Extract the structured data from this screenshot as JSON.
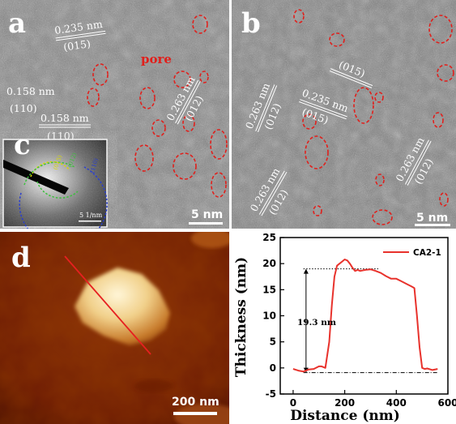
{
  "panel_a": {
    "letter": "a",
    "labels": [
      {
        "distance": "0.235 nm",
        "plane": "(015)"
      },
      {
        "distance": "0.158 nm",
        "plane": "(110)"
      },
      {
        "distance": "0.158 nm",
        "plane": "(110)"
      },
      {
        "distance": "0.263 nm",
        "plane": "(012)"
      }
    ],
    "pore_label": "pore",
    "scale_bar": "5 nm",
    "inset": {
      "letter": "c",
      "scale_bar": "5 1/nm",
      "ring_labels": [
        "(015)",
        "(012)",
        "(110)"
      ]
    }
  },
  "panel_b": {
    "letter": "b",
    "labels": [
      {
        "distance": "0.263 nm",
        "plane": "(012)"
      },
      {
        "distance": "0.235 nm",
        "plane": "(015)"
      },
      {
        "distance": "0.263 nm",
        "plane": "(012)"
      },
      {
        "plane": "(015)"
      },
      {
        "distance": "0.263 nm",
        "plane": "(012)"
      }
    ],
    "scale_bar": "5 nm"
  },
  "panel_d": {
    "letter": "d",
    "scale_bar": "200 nm"
  },
  "chart_data": {
    "type": "line",
    "xlabel": "Distance (nm)",
    "ylabel": "Thickness (nm)",
    "xlim": [
      -50,
      600
    ],
    "ylim": [
      -5,
      25
    ],
    "xticks": [
      0,
      200,
      400,
      600
    ],
    "yticks": [
      -5,
      0,
      5,
      10,
      15,
      20,
      25
    ],
    "legend_position": "top-right",
    "series": [
      {
        "name": "CA2-1",
        "color": "#e8322c",
        "x": [
          0,
          20,
          40,
          60,
          80,
          100,
          110,
          125,
          140,
          150,
          160,
          170,
          180,
          190,
          200,
          210,
          220,
          230,
          240,
          250,
          260,
          280,
          300,
          320,
          340,
          360,
          380,
          400,
          420,
          440,
          460,
          470,
          480,
          490,
          500,
          510,
          520,
          540,
          560
        ],
        "y": [
          -0.2,
          -0.5,
          -0.7,
          -0.3,
          -0.2,
          0.3,
          0.3,
          0.0,
          5.0,
          12.0,
          17.5,
          19.6,
          20.0,
          20.4,
          20.8,
          20.6,
          20.0,
          19.2,
          18.6,
          18.8,
          18.6,
          18.8,
          18.9,
          18.6,
          18.2,
          17.6,
          17.1,
          17.1,
          16.6,
          16.1,
          15.6,
          15.3,
          10.0,
          4.0,
          0.0,
          -0.2,
          -0.1,
          -0.4,
          -0.2
        ]
      }
    ],
    "annotation": "19.3 nm"
  }
}
